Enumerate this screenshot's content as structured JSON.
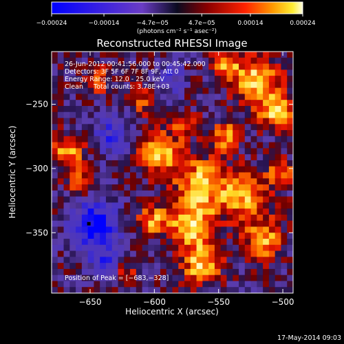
{
  "chart_data": {
    "type": "heatmap",
    "title": "Reconstructed RHESSI Image",
    "xlabel": "Heliocentric X (arcsec)",
    "ylabel": "Heliocentric Y (arcsec)",
    "xlim": [
      -680,
      -492
    ],
    "ylim": [
      -397,
      -209
    ],
    "x_ticks": [
      {
        "value": -650,
        "label": "−650"
      },
      {
        "value": -600,
        "label": "−600"
      },
      {
        "value": -550,
        "label": "−550"
      },
      {
        "value": -500,
        "label": "−500"
      }
    ],
    "y_ticks": [
      {
        "value": -250,
        "label": "−250"
      },
      {
        "value": -300,
        "label": "−300"
      },
      {
        "value": -350,
        "label": "−350"
      }
    ],
    "colorbar": {
      "range": [
        -0.00024,
        0.00024
      ],
      "ticks": [
        {
          "value": -0.00024,
          "label": "−0.00024"
        },
        {
          "value": -0.00014,
          "label": "−0.00014"
        },
        {
          "value": -4.7e-05,
          "label": "−4.7e−05"
        },
        {
          "value": 4.7e-05,
          "label": "4.7e−05"
        },
        {
          "value": 0.00014,
          "label": "0.00014"
        },
        {
          "value": 0.00024,
          "label": "0.00024"
        }
      ],
      "units": "(photons cm⁻² s⁻¹ asec⁻²)"
    },
    "header_lines": [
      "26-Jun-2012 00:41:56.000 to 00:45:42.000",
      "Detectors: 3F 5F 6F 7F 8F 9F, Att 0",
      "Energy Range: 12.0 - 25.0 keV",
      "Clean     Total counts: 3.78E+03"
    ],
    "peak": {
      "x": -683,
      "y": -328,
      "label": "Position of Peak = [−683,−328]"
    },
    "marker": {
      "x": -651,
      "y": -343
    },
    "colors": {
      "background": "#000000",
      "text": "#ffffff",
      "marker": "#000000"
    },
    "grid": false,
    "timestamp": "17-May-2014 09:03"
  }
}
